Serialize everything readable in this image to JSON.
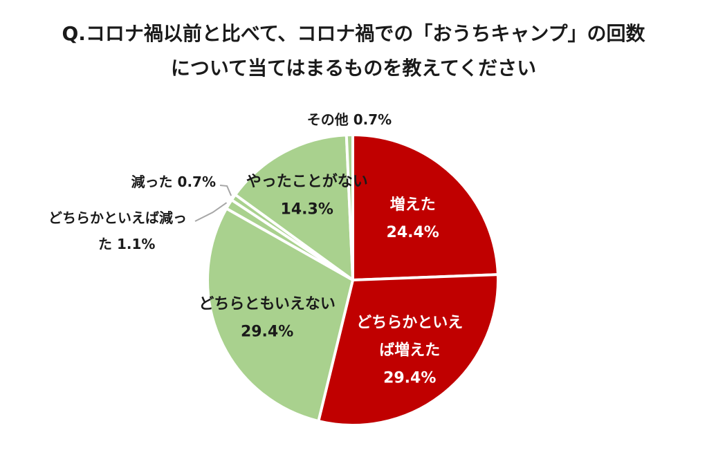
{
  "title_line1": "Q.コロナ禍以前と比べて、コロナ禍での「おうちキャンプ」の回数",
  "title_line2": "について当てはまるものを教えてください",
  "chart_data": {
    "type": "pie",
    "start": "12 o'clock",
    "direction": "clockwise",
    "slices": [
      {
        "label_lines": [
          "増えた"
        ],
        "value_text": "24.4%",
        "value": 24.4,
        "color": "#c00000",
        "text_color": "#ffffff"
      },
      {
        "label_lines": [
          "どちらかといえ",
          "ば増えた"
        ],
        "value_text": "29.4%",
        "value": 29.4,
        "color": "#c00000",
        "text_color": "#ffffff"
      },
      {
        "label_lines": [
          "どちらともいえない"
        ],
        "value_text": "29.4%",
        "value": 29.4,
        "color": "#a9d18e",
        "text_color": "#1a1a1a"
      },
      {
        "label_lines": [
          "どちらかといえば減っ",
          "た"
        ],
        "value_text": "1.1%",
        "value": 1.1,
        "color": "#a9d18e",
        "text_color": "#1a1a1a"
      },
      {
        "label_lines": [
          "減った"
        ],
        "value_text": "0.7%",
        "value": 0.7,
        "color": "#a9d18e",
        "text_color": "#1a1a1a"
      },
      {
        "label_lines": [
          "やったことがない"
        ],
        "value_text": "14.3%",
        "value": 14.3,
        "color": "#a9d18e",
        "text_color": "#1a1a1a"
      },
      {
        "label_lines": [
          "その他"
        ],
        "value_text": "0.7%",
        "value": 0.7,
        "color": "#a9d18e",
        "text_color": "#1a1a1a"
      }
    ]
  }
}
